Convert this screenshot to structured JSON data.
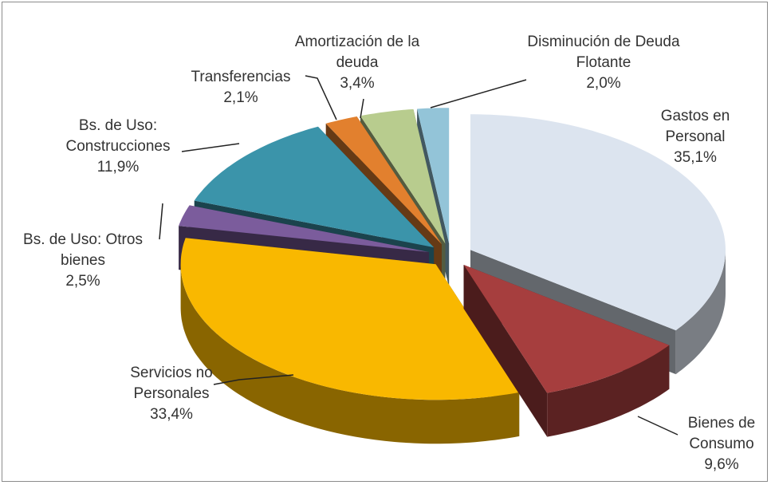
{
  "chart_data": {
    "type": "pie3d",
    "categories": [
      "Gastos en Personal",
      "Bienes de Consumo",
      "Servicios no Personales",
      "Bs. de Uso: Otros bienes",
      "Bs. de Uso: Construcciones",
      "Transferencias",
      "Amortización de la deuda",
      "Disminución de Deuda Flotante"
    ],
    "values": [
      35.1,
      9.6,
      33.4,
      2.5,
      11.9,
      2.1,
      3.4,
      2.0
    ],
    "value_labels": [
      "35,1%",
      "9,6%",
      "33,4%",
      "2,5%",
      "11,9%",
      "2,1%",
      "3,4%",
      "2,0%"
    ],
    "colors": [
      "#dce4ef",
      "#a63e3e",
      "#f9b800",
      "#7b5c9c",
      "#3b94aa",
      "#e2802e",
      "#b8cc8e",
      "#93c4d8"
    ]
  }
}
